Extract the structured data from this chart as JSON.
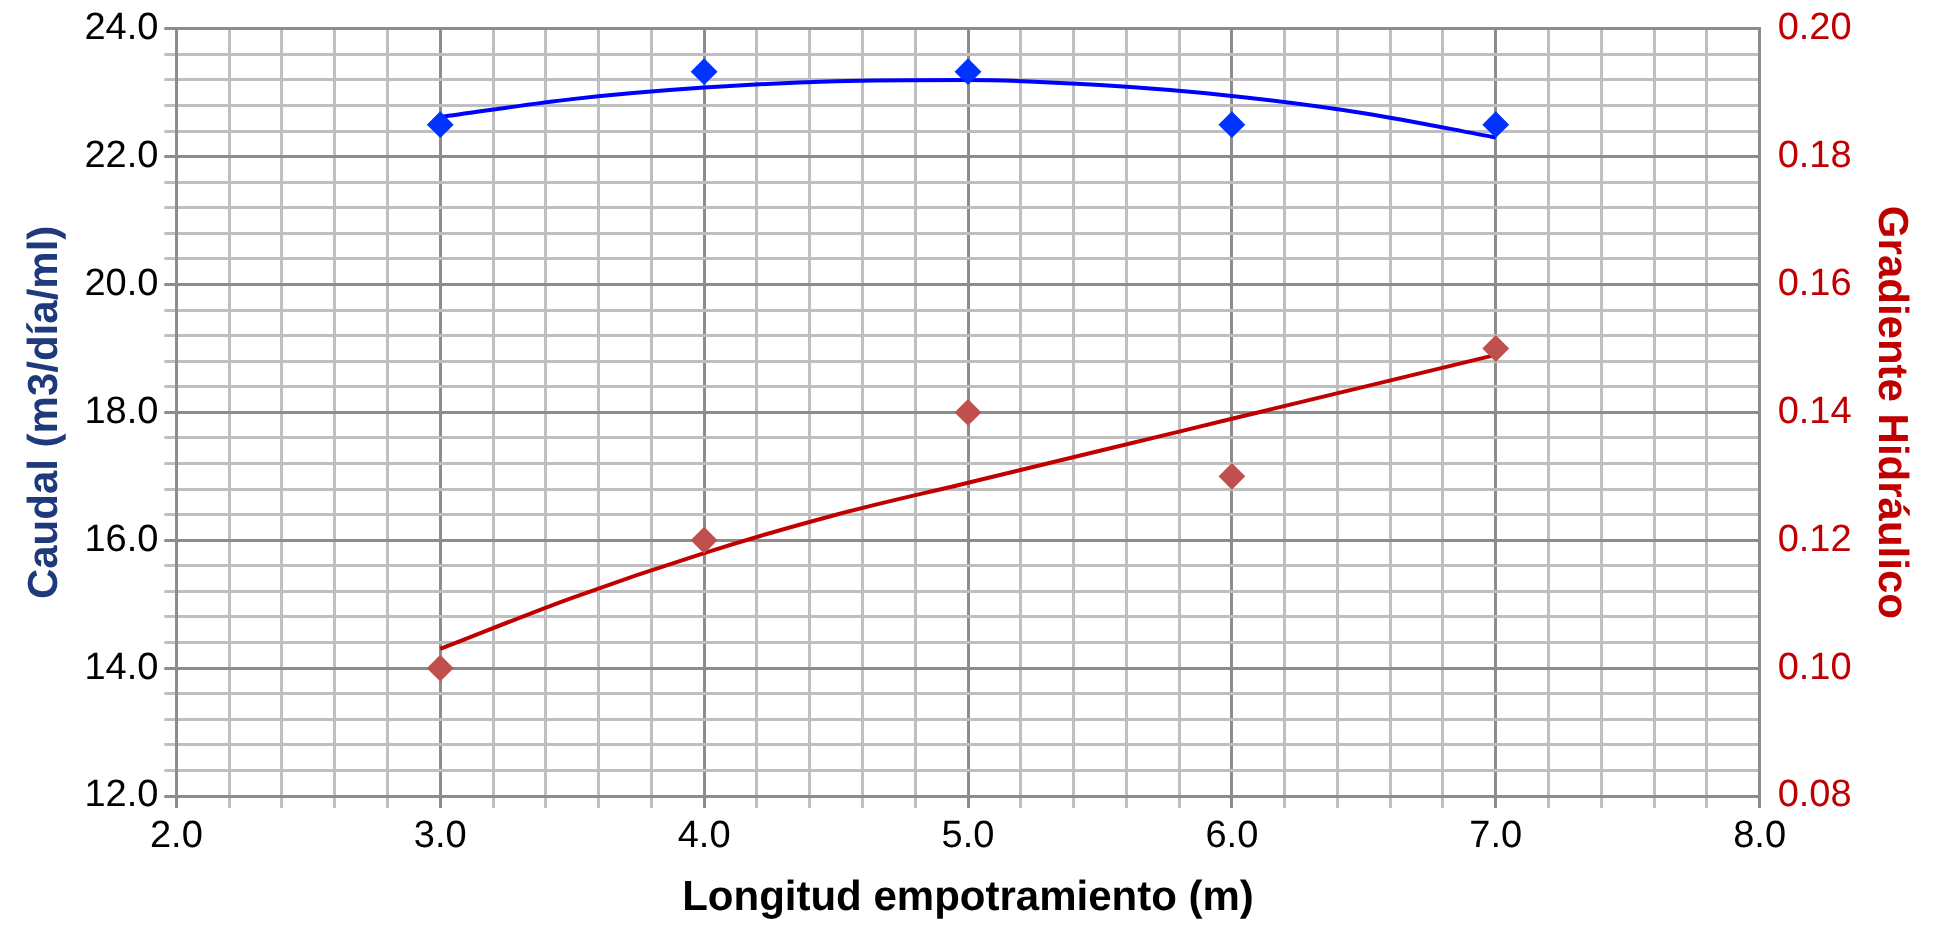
{
  "chart_data": {
    "type": "scatter",
    "xlabel": "Longitud empotramiento (m)",
    "ylabel": "Caudal (m3/día/ml)",
    "y2label": "Gradiente Hidráulico",
    "xlim": [
      2.0,
      8.0
    ],
    "xticks": [
      {
        "value": 2.0,
        "label": "2.0"
      },
      {
        "value": 2.2,
        "label": null
      },
      {
        "value": 2.4,
        "label": null
      },
      {
        "value": 2.6,
        "label": null
      },
      {
        "value": 2.8,
        "label": null
      },
      {
        "value": 3.0,
        "label": "3.0"
      },
      {
        "value": 3.2,
        "label": null
      },
      {
        "value": 3.4,
        "label": null
      },
      {
        "value": 3.6,
        "label": null
      },
      {
        "value": 3.8,
        "label": null
      },
      {
        "value": 4.0,
        "label": "4.0"
      },
      {
        "value": 4.2,
        "label": null
      },
      {
        "value": 4.4,
        "label": null
      },
      {
        "value": 4.6,
        "label": null
      },
      {
        "value": 4.8,
        "label": null
      },
      {
        "value": 5.0,
        "label": "5.0"
      },
      {
        "value": 5.2,
        "label": null
      },
      {
        "value": 5.4,
        "label": null
      },
      {
        "value": 5.6,
        "label": null
      },
      {
        "value": 5.8,
        "label": null
      },
      {
        "value": 6.0,
        "label": "6.0"
      },
      {
        "value": 6.2,
        "label": null
      },
      {
        "value": 6.4,
        "label": null
      },
      {
        "value": 6.6,
        "label": null
      },
      {
        "value": 6.8,
        "label": null
      },
      {
        "value": 7.0,
        "label": "7.0"
      },
      {
        "value": 7.2,
        "label": null
      },
      {
        "value": 7.4,
        "label": null
      },
      {
        "value": 7.6,
        "label": null
      },
      {
        "value": 7.8,
        "label": null
      },
      {
        "value": 8.0,
        "label": "8.0"
      }
    ],
    "ylim": [
      12.0,
      24.0
    ],
    "yticks": [
      {
        "value": 12.0,
        "label": "12.0"
      },
      {
        "value": 12.4,
        "label": null
      },
      {
        "value": 12.8,
        "label": null
      },
      {
        "value": 13.2,
        "label": null
      },
      {
        "value": 13.6,
        "label": null
      },
      {
        "value": 14.0,
        "label": "14.0"
      },
      {
        "value": 14.4,
        "label": null
      },
      {
        "value": 14.8,
        "label": null
      },
      {
        "value": 15.2,
        "label": null
      },
      {
        "value": 15.6,
        "label": null
      },
      {
        "value": 16.0,
        "label": "16.0"
      },
      {
        "value": 16.4,
        "label": null
      },
      {
        "value": 16.8,
        "label": null
      },
      {
        "value": 17.2,
        "label": null
      },
      {
        "value": 17.6,
        "label": null
      },
      {
        "value": 18.0,
        "label": "18.0"
      },
      {
        "value": 18.4,
        "label": null
      },
      {
        "value": 18.8,
        "label": null
      },
      {
        "value": 19.2,
        "label": null
      },
      {
        "value": 19.6,
        "label": null
      },
      {
        "value": 20.0,
        "label": "20.0"
      },
      {
        "value": 20.4,
        "label": null
      },
      {
        "value": 20.8,
        "label": null
      },
      {
        "value": 21.2,
        "label": null
      },
      {
        "value": 21.6,
        "label": null
      },
      {
        "value": 22.0,
        "label": "22.0"
      },
      {
        "value": 22.4,
        "label": null
      },
      {
        "value": 22.8,
        "label": null
      },
      {
        "value": 23.2,
        "label": null
      },
      {
        "value": 23.6,
        "label": null
      },
      {
        "value": 24.0,
        "label": "24.0"
      }
    ],
    "y2lim": [
      0.08,
      0.2
    ],
    "y2ticks": [
      0.08,
      {
        "value": 0.1,
        "label": "0.10"
      },
      0.12,
      0.14,
      0.16,
      0.18,
      {
        "value": 0.2,
        "label": "0.20"
      }
    ],
    "grid": true,
    "legend": false,
    "marker": "diamond",
    "series": [
      {
        "type": "scatter",
        "color": "#0033ff",
        "x": [
          3.0,
          4.0,
          5.0,
          6.0,
          7.0
        ],
        "values": [
          22.5,
          23.33,
          23.33,
          22.5,
          22.5
        ]
      },
      {
        "type": "line",
        "color": "#0000ff",
        "marker": "none",
        "line_style": "solid",
        "x": [
          3.0,
          3.5,
          4.0,
          4.5,
          5.0,
          5.5,
          6.0,
          6.5,
          7.0
        ],
        "values": [
          22.62,
          22.9,
          23.08,
          23.18,
          23.2,
          23.12,
          22.95,
          22.68,
          22.3
        ]
      },
      {
        "type": "scatter",
        "color": "#c0504d",
        "axis": "y2",
        "x": [
          3.0,
          4.0,
          5.0,
          6.0,
          7.0
        ],
        "values": [
          0.1,
          0.12,
          0.14,
          0.13,
          0.15
        ]
      },
      {
        "type": "line",
        "color": "#c00000",
        "axis": "y2",
        "marker": "none",
        "line_style": "solid",
        "x": [
          3.0,
          3.5,
          4.0,
          4.5,
          5.0,
          5.5,
          6.0,
          6.5,
          7.0
        ],
        "values": [
          0.103,
          0.111,
          0.118,
          0.124,
          0.129,
          0.134,
          0.139,
          0.144,
          0.149
        ]
      }
    ]
  }
}
